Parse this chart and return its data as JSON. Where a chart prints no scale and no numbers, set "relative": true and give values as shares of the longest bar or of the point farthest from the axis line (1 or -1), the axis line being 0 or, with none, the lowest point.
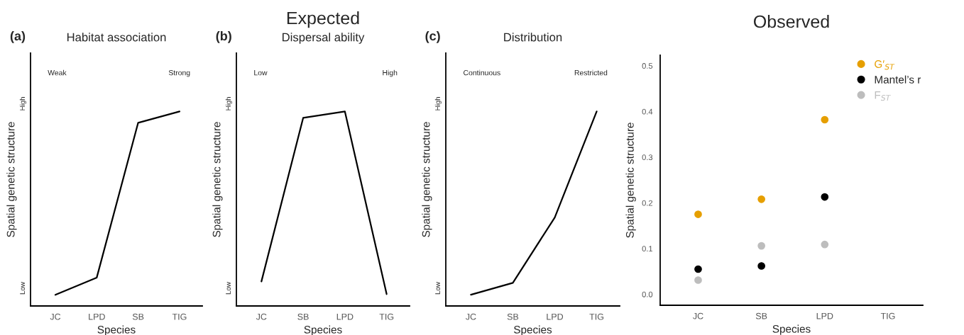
{
  "chart_data": [
    {
      "type": "line",
      "title": "Habitat association",
      "xlabel": "Species",
      "ylabel": "Spatial genetic structure",
      "relative": true,
      "grid": false,
      "legend": false,
      "categories": [
        "JC",
        "LPD",
        "SB",
        "TIG"
      ],
      "series": [
        {
          "color": "#000000",
          "values": [
            0.057,
            0.146,
            0.942,
            1
          ]
        }
      ],
      "annotations": [
        "(a)",
        "Weak",
        "Strong",
        "Low",
        "High"
      ]
    },
    {
      "type": "line",
      "title": "Dispersal ability",
      "xlabel": "Species",
      "ylabel": "Spatial genetic structure",
      "relative": true,
      "grid": false,
      "legend": false,
      "categories": [
        "JC",
        "SB",
        "LPD",
        "TIG"
      ],
      "series": [
        {
          "color": "#000000",
          "values": [
            0.126,
            0.967,
            1,
            0.061
          ]
        }
      ],
      "annotations": [
        "(b)",
        "Low",
        "High",
        "Low",
        "High",
        "Expected"
      ]
    },
    {
      "type": "line",
      "title": "Distribution",
      "xlabel": "Species",
      "ylabel": "Spatial genetic structure",
      "relative": true,
      "grid": false,
      "legend": false,
      "categories": [
        "JC",
        "SB",
        "LPD",
        "TIG"
      ],
      "series": [
        {
          "color": "#000000",
          "values": [
            0.058,
            0.119,
            0.455,
            1
          ]
        }
      ],
      "annotations": [
        "(c)",
        "Continuous",
        "Restricted",
        "Low",
        "High"
      ]
    },
    {
      "type": "scatter",
      "title": "Observed",
      "xlabel": "Species",
      "ylabel": "Spatial genetic structure",
      "grid": false,
      "legend": "top right",
      "marker": "circle",
      "categories": [
        "JC",
        "SB",
        "LPD",
        "TIG"
      ],
      "ylim": [
        -0.024,
        0.523
      ],
      "yticks": [
        {
          "value": 0,
          "label": "0.0"
        },
        0.1,
        0.2,
        0.3,
        0.4,
        0.5
      ],
      "series": [
        {
          "name": "G′$_{ST}$",
          "color": "#e69f00",
          "values": [
            0.175,
            0.208,
            0.382,
            null
          ]
        },
        {
          "name": "Mantel’s r",
          "color": "#000000",
          "values": [
            0.055,
            0.062,
            0.213,
            null
          ]
        },
        {
          "name": "F$_{ST}$",
          "color": "#bdbdbd",
          "values": [
            0.031,
            0.106,
            0.109,
            null
          ]
        }
      ]
    }
  ]
}
